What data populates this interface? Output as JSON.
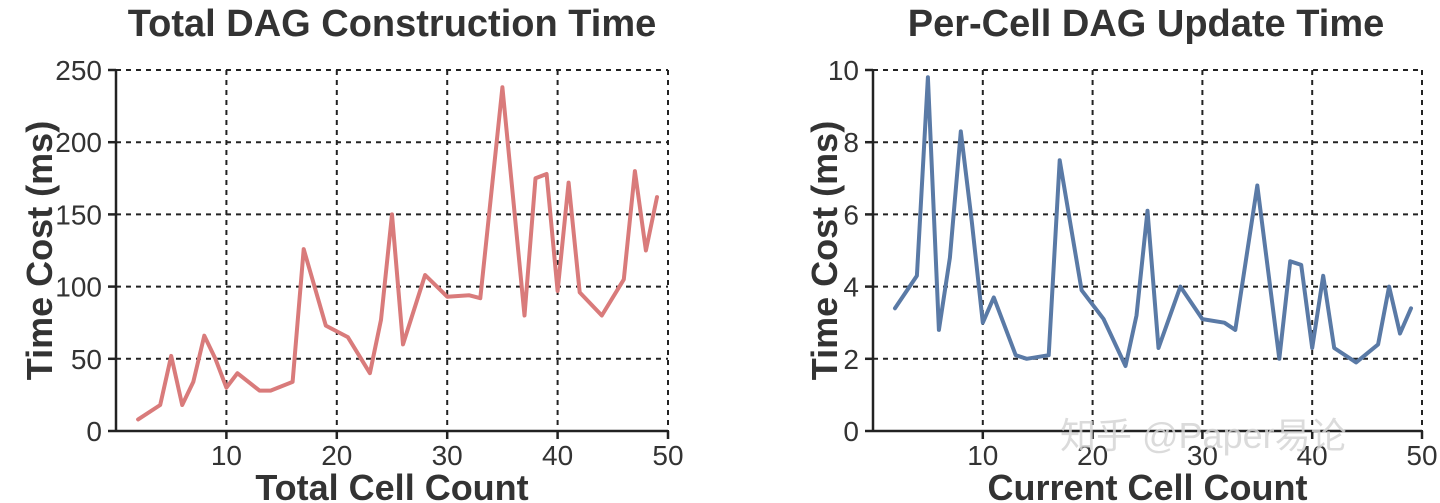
{
  "chart_data": [
    {
      "type": "line",
      "title": "Total DAG Construction Time",
      "xlabel": "Total Cell Count",
      "ylabel": "Time Cost (ms)",
      "xlim": [
        0,
        50
      ],
      "ylim": [
        0,
        250
      ],
      "xticks": [
        10,
        20,
        30,
        40,
        50
      ],
      "yticks": [
        0,
        50,
        100,
        150,
        200,
        250
      ],
      "grid": true,
      "color": "#d97b7b",
      "series": [
        {
          "x": [
            2,
            4,
            5,
            6,
            7,
            8,
            9,
            10,
            11,
            13,
            14,
            16,
            17,
            19,
            21,
            23,
            24,
            25,
            26,
            28,
            30,
            32,
            33,
            35,
            37,
            38,
            39,
            40,
            41,
            42,
            44,
            46,
            47,
            48,
            49
          ],
          "y": [
            8,
            18,
            52,
            18,
            34,
            66,
            50,
            30,
            40,
            28,
            28,
            34,
            126,
            73,
            65,
            40,
            77,
            150,
            60,
            108,
            93,
            94,
            92,
            238,
            80,
            175,
            178,
            97,
            172,
            96,
            80,
            105,
            180,
            125,
            162
          ]
        }
      ]
    },
    {
      "type": "line",
      "title": "Per-Cell DAG Update Time",
      "xlabel": "Current Cell Count",
      "ylabel": "Time Cost (ms)",
      "xlim": [
        0,
        50
      ],
      "ylim": [
        0,
        10
      ],
      "xticks": [
        10,
        20,
        30,
        40,
        50
      ],
      "yticks": [
        0,
        2,
        4,
        6,
        8,
        10
      ],
      "grid": true,
      "color": "#5a7aa6",
      "series": [
        {
          "x": [
            2,
            4,
            5,
            6,
            7,
            8,
            9,
            10,
            11,
            13,
            14,
            16,
            17,
            19,
            21,
            23,
            24,
            25,
            26,
            28,
            30,
            32,
            33,
            35,
            37,
            38,
            39,
            40,
            41,
            42,
            44,
            46,
            47,
            48,
            49
          ],
          "y": [
            3.4,
            4.3,
            9.8,
            2.8,
            4.8,
            8.3,
            5.8,
            3.0,
            3.7,
            2.1,
            2.0,
            2.1,
            7.5,
            3.9,
            3.1,
            1.8,
            3.2,
            6.1,
            2.3,
            4.0,
            3.1,
            3.0,
            2.8,
            6.8,
            2.0,
            4.7,
            4.6,
            2.3,
            4.3,
            2.3,
            1.9,
            2.4,
            4.0,
            2.7,
            3.4
          ]
        }
      ]
    }
  ],
  "watermark": "知乎 @Paper易论"
}
